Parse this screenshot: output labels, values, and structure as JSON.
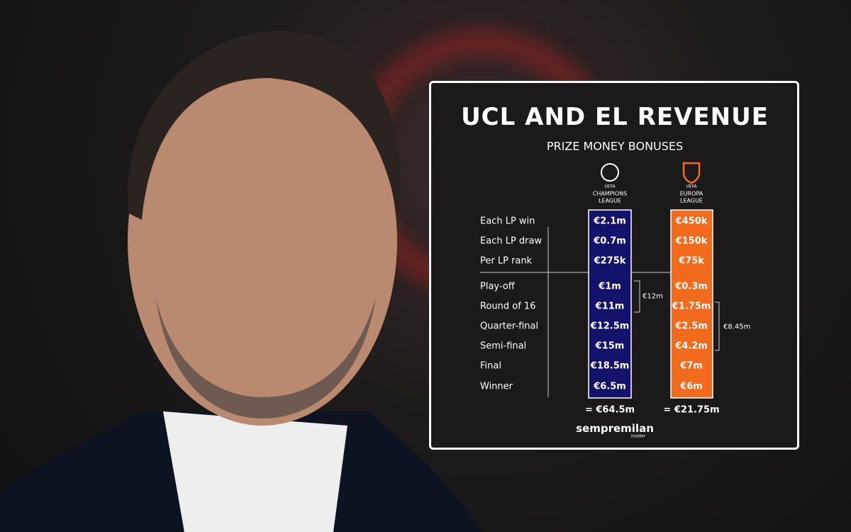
{
  "header": {
    "title": "UCL AND EL REVENUE",
    "subtitle": "PRIZE MONEY BONUSES"
  },
  "competitions": [
    {
      "org": "UEFA",
      "name_line1": "CHAMPIONS",
      "name_line2": "LEAGUE"
    },
    {
      "org": "UEFA",
      "name_line1": "EUROPA",
      "name_line2": "LEAGUE"
    }
  ],
  "table": {
    "rows": [
      [
        "Each LP win",
        "€2.1m",
        "€450k"
      ],
      [
        "Each LP draw",
        "€0.7m",
        "€150k"
      ],
      [
        "Per LP rank",
        "€275k",
        "€75k"
      ],
      [
        "Play-off",
        "€1m",
        "€0.3m"
      ],
      [
        "Round of 16",
        "€11m",
        "€1.75m"
      ],
      [
        "Quarter-final",
        "€12.5m",
        "€2.5m"
      ],
      [
        "Semi-final",
        "€15m",
        "€4.2m"
      ],
      [
        "Final",
        "€18.5m",
        "€7m"
      ],
      [
        "Winner",
        "€6.5m",
        "€6m"
      ]
    ]
  },
  "brackets": [
    "€12m",
    "€8.45m"
  ],
  "totals": [
    "= €64.5m",
    "= €21.75m"
  ],
  "footer": {
    "brand": "sempremilan",
    "tagline": "insider"
  }
}
